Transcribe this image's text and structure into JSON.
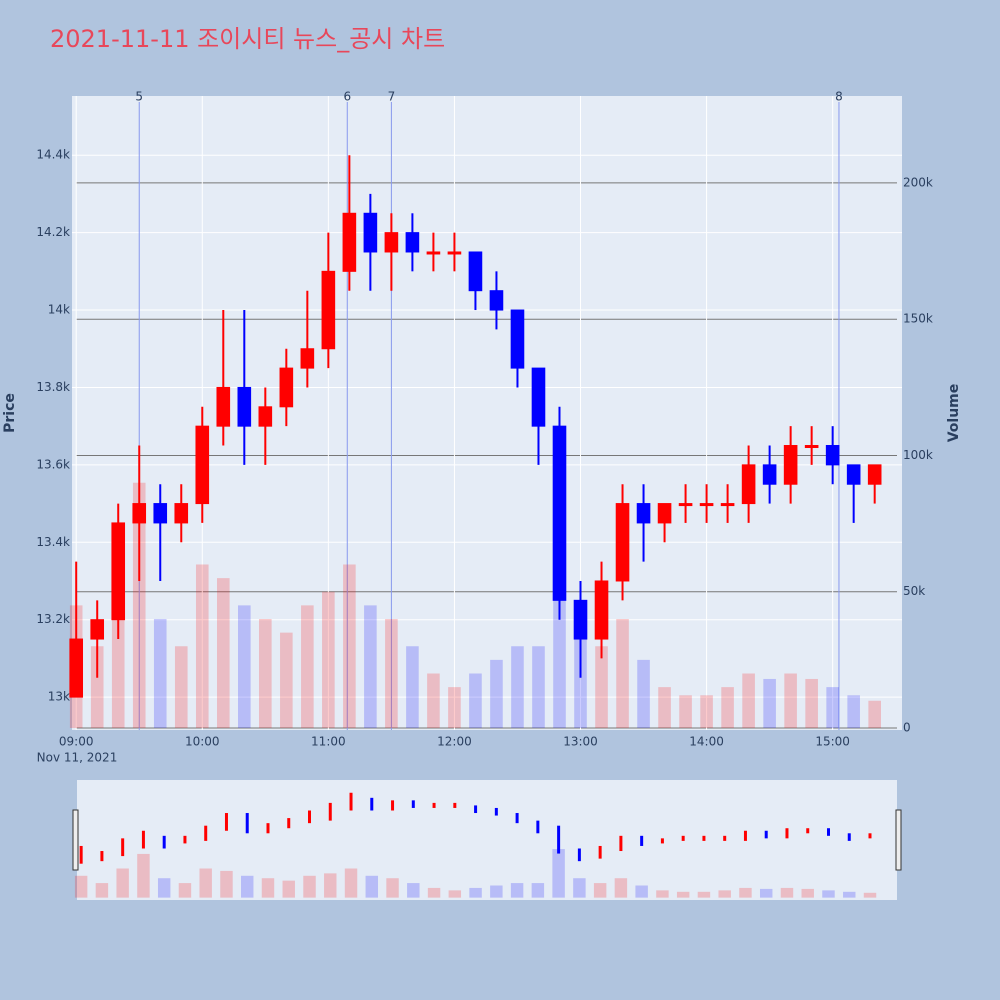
{
  "chart_data": {
    "type": "candlestick",
    "title": "2021-11-11 조이시티 뉴스_공시 차트",
    "y_label": "Price",
    "y2_label": "Volume",
    "x_sublabel": "Nov 11, 2021",
    "increasing_color": "#ff0000",
    "decreasing_color": "#0000ff",
    "x": [
      "09:00",
      "09:10",
      "09:20",
      "09:30",
      "09:40",
      "09:50",
      "10:00",
      "10:10",
      "10:20",
      "10:30",
      "10:40",
      "10:50",
      "11:00",
      "11:10",
      "11:20",
      "11:30",
      "11:40",
      "11:50",
      "12:00",
      "12:10",
      "12:20",
      "12:30",
      "12:40",
      "12:50",
      "13:00",
      "13:10",
      "13:20",
      "13:30",
      "13:40",
      "13:50",
      "14:00",
      "14:10",
      "14:20",
      "14:30",
      "14:40",
      "14:50",
      "15:00",
      "15:10",
      "15:20"
    ],
    "open": [
      13000,
      13150,
      13200,
      13450,
      13500,
      13450,
      13500,
      13700,
      13800,
      13700,
      13750,
      13850,
      13900,
      14100,
      14250,
      14150,
      14200,
      14150,
      14150,
      14150,
      14050,
      14000,
      13850,
      13700,
      13250,
      13150,
      13300,
      13500,
      13450,
      13500,
      13500,
      13500,
      13500,
      13600,
      13550,
      13650,
      13650,
      13600,
      13550
    ],
    "high": [
      13350,
      13250,
      13500,
      13650,
      13550,
      13550,
      13750,
      14000,
      14000,
      13800,
      13900,
      14050,
      14200,
      14400,
      14300,
      14250,
      14250,
      14200,
      14200,
      14150,
      14100,
      14000,
      13850,
      13750,
      13300,
      13350,
      13550,
      13550,
      13500,
      13550,
      13550,
      13550,
      13650,
      13650,
      13700,
      13700,
      13700,
      13600,
      13600
    ],
    "low": [
      13000,
      13050,
      13150,
      13300,
      13300,
      13400,
      13450,
      13650,
      13600,
      13600,
      13700,
      13800,
      13850,
      14050,
      14050,
      14050,
      14100,
      14100,
      14100,
      14000,
      13950,
      13800,
      13600,
      13200,
      13050,
      13100,
      13250,
      13350,
      13400,
      13450,
      13450,
      13450,
      13450,
      13500,
      13500,
      13600,
      13550,
      13450,
      13500
    ],
    "close": [
      13150,
      13200,
      13450,
      13500,
      13450,
      13500,
      13700,
      13800,
      13700,
      13750,
      13850,
      13900,
      14100,
      14250,
      14150,
      14200,
      14150,
      14150,
      14150,
      14050,
      14000,
      13850,
      13700,
      13250,
      13150,
      13300,
      13500,
      13450,
      13500,
      13500,
      13500,
      13500,
      13600,
      13550,
      13650,
      13650,
      13600,
      13550,
      13600
    ],
    "volume": [
      45000,
      30000,
      60000,
      90000,
      40000,
      30000,
      60000,
      55000,
      45000,
      40000,
      35000,
      45000,
      50000,
      60000,
      45000,
      40000,
      30000,
      20000,
      15000,
      20000,
      25000,
      30000,
      30000,
      100000,
      40000,
      30000,
      40000,
      25000,
      15000,
      12000,
      12000,
      15000,
      20000,
      18000,
      20000,
      18000,
      15000,
      12000,
      10000
    ],
    "xlim": [
      "08:58",
      "15:33"
    ],
    "xticks": [
      "09:00",
      "10:00",
      "11:00",
      "12:00",
      "13:00",
      "14:00",
      "15:00"
    ],
    "ylim": [
      12915,
      14553
    ],
    "yticks": [
      {
        "value": 13000,
        "label": "13k"
      },
      {
        "value": 13200,
        "label": "13.2k"
      },
      {
        "value": 13400,
        "label": "13.4k"
      },
      {
        "value": 13600,
        "label": "13.6k"
      },
      {
        "value": 13800,
        "label": "13.8k"
      },
      {
        "value": 14000,
        "label": "14k"
      },
      {
        "value": 14200,
        "label": "14.2k"
      },
      {
        "value": 14400,
        "label": "14.4k"
      }
    ],
    "y2lim": [
      -734,
      231900
    ],
    "y2ticks": [
      0,
      {
        "value": 50000,
        "label": "50k"
      },
      {
        "value": 100000,
        "label": "100k"
      },
      {
        "value": 150000,
        "label": "150k"
      },
      {
        "value": 200000,
        "label": "200k"
      }
    ],
    "annotations": [
      {
        "x": "09:30",
        "text": "5"
      },
      {
        "x": "11:09",
        "text": "6"
      },
      {
        "x": "11:30",
        "text": "7"
      },
      {
        "x": "15:03",
        "text": "8"
      }
    ],
    "rangeslider": true
  }
}
